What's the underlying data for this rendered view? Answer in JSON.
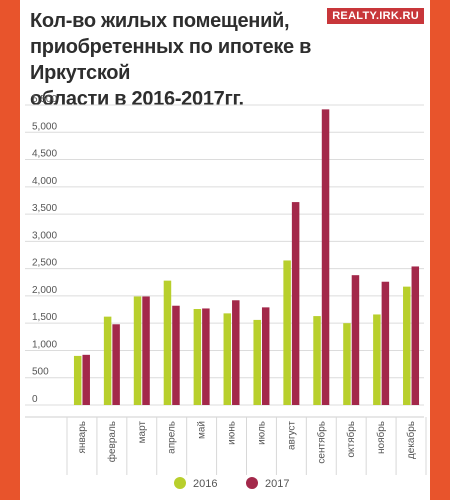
{
  "header": {
    "title_lines": [
      "Кол-во жилых помещений,",
      "приобретенных по ипотеке в Иркутской",
      "области в 2016-2017гг."
    ],
    "logo": "REALTY.IRK.RU"
  },
  "colors": {
    "series_2016": "#b8cf2c",
    "series_2017": "#a3284a",
    "page_border": "#e8542c"
  },
  "chart_data": {
    "type": "bar",
    "title": "Кол-во жилых помещений, приобретенных по ипотеке в Иркутской области в 2016-2017гг.",
    "categories": [
      "январь",
      "февраль",
      "март",
      "апрель",
      "май",
      "июнь",
      "июль",
      "август",
      "сентябрь",
      "октябрь",
      "ноябрь",
      "декабрь"
    ],
    "series": [
      {
        "name": "2016",
        "values": [
          900,
          1620,
          1990,
          2280,
          1760,
          1680,
          1560,
          2650,
          1630,
          1500,
          1660,
          2170
        ]
      },
      {
        "name": "2017",
        "values": [
          920,
          1480,
          1990,
          1820,
          1770,
          1920,
          1790,
          3720,
          5420,
          2380,
          2260,
          2540
        ]
      }
    ],
    "yticks": [
      "0",
      "500",
      "1,000",
      "1,500",
      "2,000",
      "2,500",
      "3,000",
      "3,500",
      "4,000",
      "4,500",
      "5,000",
      "5,500"
    ],
    "ylim": [
      0,
      5500
    ],
    "grid": true,
    "legend_position": "bottom"
  }
}
